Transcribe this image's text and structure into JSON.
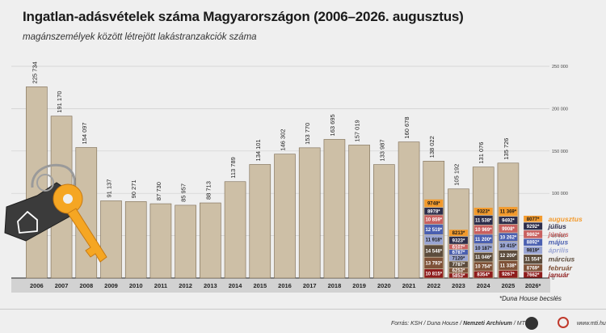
{
  "title": "Ingatlan-adásvételek száma Magyarországon (2006–2026. augusztus)",
  "subtitle": "magánszemélyek között létrejött lakástranzakciók száma",
  "estimate_note": "*Duna House becslés",
  "footer": {
    "source_prefix": "Forrás: KSH / Duna House / ",
    "source_bold": "Nemzeti Archívum",
    "source_suffix": " / MTI",
    "site": "www.mti.hu"
  },
  "colors": {
    "bar": "#cdbfa6",
    "bar_stroke": "#7a6a52",
    "january": "#8e1c1c",
    "february": "#7e5137",
    "march": "#5c4c3c",
    "april": "#9aa5d3",
    "may": "#4a5fb0",
    "june": "#c8605f",
    "july": "#2d2d4a",
    "august": "#f39a2c",
    "key_orange": "#f5a623",
    "tag": "#3b3b3b"
  },
  "chart_data": {
    "type": "bar",
    "title": "Ingatlan-adásvételek száma Magyarországon (2006–2026. augusztus)",
    "subtitle": "magánszemélyek között létrejött lakástranzakciók száma",
    "xlabel": "",
    "ylabel": "",
    "ylim": [
      0,
      250000
    ],
    "y_ticks": [
      0,
      50000,
      100000,
      150000,
      200000,
      250000
    ],
    "y_tick_labels": [
      "0",
      "50 000",
      "100 000",
      "150 000",
      "200 000",
      "250 000"
    ],
    "grid": true,
    "categories": [
      "2006",
      "2007",
      "2008",
      "2009",
      "2010",
      "2011",
      "2012",
      "2013",
      "2014",
      "2015",
      "2016",
      "2017",
      "2018",
      "2019",
      "2020",
      "2021",
      "2022",
      "2023",
      "2024",
      "2025",
      "2026*"
    ],
    "values": [
      225734,
      191170,
      154097,
      91137,
      90271,
      87730,
      85957,
      88713,
      113789,
      134101,
      146302,
      153770,
      163695,
      157019,
      133987,
      160678,
      138022,
      105192,
      131076,
      135726,
      null
    ],
    "value_labels": [
      "225 734",
      "191 170",
      "154 097",
      "91 137",
      "90 271",
      "87 730",
      "85 957",
      "88 713",
      "113 789",
      "134 101",
      "146 302",
      "153 770",
      "163 695",
      "157 019",
      "133 987",
      "160 678",
      "138 022",
      "105 192",
      "131 076",
      "135 726",
      ""
    ],
    "monthly_legend": [
      "január",
      "február",
      "március",
      "április",
      "május",
      "június",
      "július",
      "augusztus"
    ],
    "monthly_breakdown": [
      {
        "year": "2022",
        "values": [
          10815,
          13793,
          14548,
          11918,
          12519,
          10859,
          8978,
          9748
        ],
        "labels": [
          "10 815*",
          "13 793*",
          "14 548*",
          "11 918*",
          "12 519*",
          "10 859*",
          "8978*",
          "9748*"
        ]
      },
      {
        "year": "2023",
        "values": [
          5853,
          6253,
          7787,
          7120,
          6787,
          6107,
          9323,
          8213
        ],
        "labels": [
          "5853*",
          "6253*",
          "7787*",
          "7120*",
          "6787*",
          "6107*",
          "9323*",
          "8213*"
        ]
      },
      {
        "year": "2024",
        "values": [
          8354,
          10754,
          11046,
          10187,
          11200,
          10969,
          11538,
          9323
        ],
        "labels": [
          "8354*",
          "10 754*",
          "11 046*",
          "10 187*",
          "11 200*",
          "10 969*",
          "11 538*",
          "9323*"
        ]
      },
      {
        "year": "2025",
        "values": [
          9267,
          11338,
          12200,
          10415,
          10262,
          9908,
          9492,
          11369
        ],
        "labels": [
          "9267*",
          "11 338*",
          "12 200*",
          "10 415*",
          "10 262*",
          "9908*",
          "9492*",
          "11 369*"
        ]
      },
      {
        "year": "2026*",
        "values": [
          7662,
          8769,
          11554,
          9819,
          8892,
          9862,
          9292,
          8077
        ],
        "labels": [
          "7662*",
          "8769*",
          "11 554*",
          "9819*",
          "8892*",
          "9862*",
          "9292*",
          "8077*"
        ]
      }
    ]
  }
}
